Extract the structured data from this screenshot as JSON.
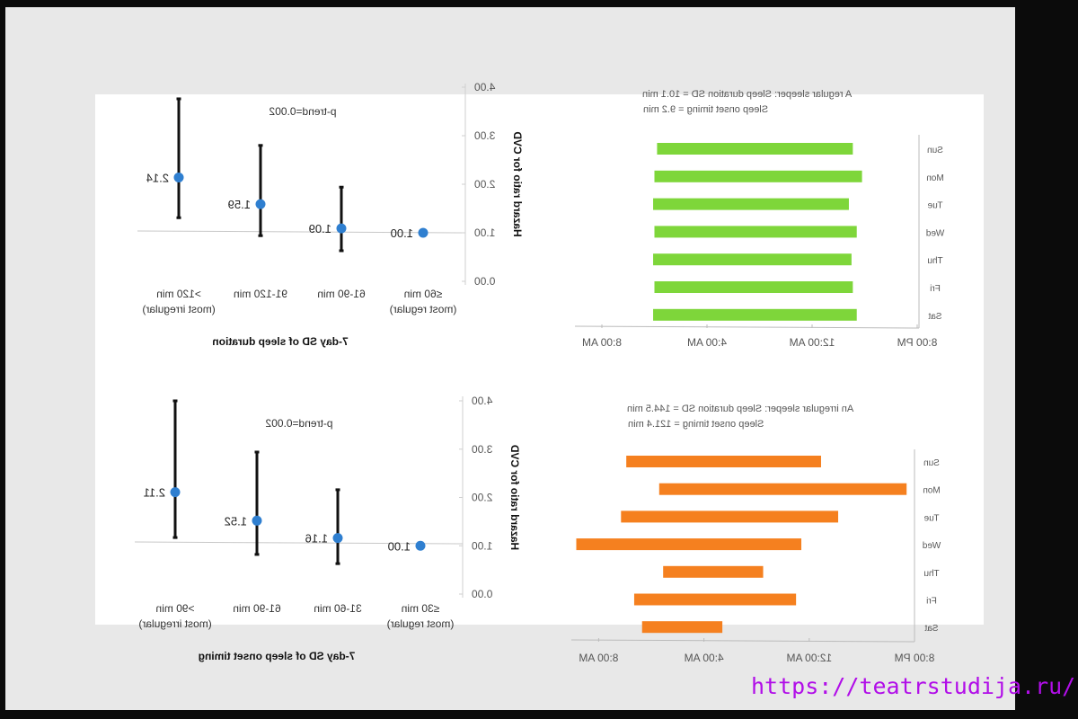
{
  "watermark": "https://teatrstudija.ru/",
  "chart_data": [
    {
      "type": "scatter",
      "subtype": "forest-plot",
      "title": "7-day SD of sleep duration",
      "annotation": "p-trend=0.002",
      "ylabel": "Hazard ratio for CVD",
      "ylim": [
        0,
        4
      ],
      "y_ticks": [
        {
          "value": 0,
          "label": "0.00"
        },
        {
          "value": 1,
          "label": "1.00"
        },
        {
          "value": 2,
          "label": "2.00"
        },
        {
          "value": 3,
          "label": "3.00"
        },
        {
          "value": 4,
          "label": "4.00"
        }
      ],
      "categories": [
        {
          "line1": "≤60 min",
          "line2": "(most regular)",
          "hr": 1.0,
          "hr_label": "1.00",
          "ci": null
        },
        {
          "line1": "61-90 min",
          "line2": "",
          "hr": 1.09,
          "hr_label": "1.09",
          "ci": [
            0.63,
            1.94
          ]
        },
        {
          "line1": "91-120 min",
          "line2": "",
          "hr": 1.59,
          "hr_label": "1.59",
          "ci": [
            0.94,
            2.8
          ]
        },
        {
          "line1": ">120 min",
          "line2": "(most irregular)",
          "hr": 2.14,
          "hr_label": "2.14",
          "ci": [
            1.31,
            3.76
          ]
        }
      ]
    },
    {
      "type": "scatter",
      "subtype": "forest-plot",
      "title": "7-day SD of sleep onset timing",
      "annotation": "p-trend=0.002",
      "ylabel": "Hazard ratio for CVD",
      "ylim": [
        0,
        4
      ],
      "y_ticks": [
        {
          "value": 0,
          "label": "0.00"
        },
        {
          "value": 1,
          "label": "1.00"
        },
        {
          "value": 2,
          "label": "2.00"
        },
        {
          "value": 3,
          "label": "3.00"
        },
        {
          "value": 4,
          "label": "4.00"
        }
      ],
      "categories": [
        {
          "line1": "≤30 min",
          "line2": "(most regular)",
          "hr": 1.0,
          "hr_label": "1.00",
          "ci": null
        },
        {
          "line1": "31-60 min",
          "line2": "",
          "hr": 1.16,
          "hr_label": "1.16",
          "ci": [
            0.63,
            2.16
          ]
        },
        {
          "line1": "61-90 min",
          "line2": "",
          "hr": 1.52,
          "hr_label": "1.52",
          "ci": [
            0.82,
            2.94
          ]
        },
        {
          "line1": ">90 min",
          "line2": "(most irregular)",
          "hr": 2.11,
          "hr_label": "2.11",
          "ci": [
            1.17,
            4.0
          ]
        }
      ]
    },
    {
      "type": "bar",
      "subtype": "floating-horizontal",
      "title_line1": "A regular sleeper: Sleep duration SD = 10.1 min",
      "title_line2": "Sleep onset timing = 9.2 min",
      "color": "#7ed63a",
      "x_unit": "hours after 8:00 PM",
      "xlim": [
        0,
        12
      ],
      "x_ticks": [
        {
          "value": 0,
          "label": "8:00 PM"
        },
        {
          "value": 4,
          "label": "12:00 AM"
        },
        {
          "value": 8,
          "label": "4:00 AM"
        },
        {
          "value": 12,
          "label": "8:00 AM"
        }
      ],
      "days": [
        {
          "day": "Sun",
          "sleep_onset": 2.45,
          "wake": 9.9
        },
        {
          "day": "Mon",
          "sleep_onset": 2.1,
          "wake": 10.0
        },
        {
          "day": "Tue",
          "sleep_onset": 2.6,
          "wake": 10.05
        },
        {
          "day": "Wed",
          "sleep_onset": 2.3,
          "wake": 10.0
        },
        {
          "day": "Thu",
          "sleep_onset": 2.5,
          "wake": 10.05
        },
        {
          "day": "Fri",
          "sleep_onset": 2.45,
          "wake": 10.0
        },
        {
          "day": "Sat",
          "sleep_onset": 2.3,
          "wake": 10.05
        }
      ]
    },
    {
      "type": "bar",
      "subtype": "floating-horizontal",
      "title_line1": "An irregular sleeper: Sleep duration SD = 144.5 min",
      "title_line2": "Sleep onset timing = 121.4 min",
      "color": "#f5801f",
      "x_unit": "hours after 8:00 PM",
      "xlim": [
        0,
        12
      ],
      "x_ticks": [
        {
          "value": 0,
          "label": "8:00 PM"
        },
        {
          "value": 4,
          "label": "12:00 AM"
        },
        {
          "value": 8,
          "label": "4:00 AM"
        },
        {
          "value": 12,
          "label": "8:00 AM"
        }
      ],
      "days": [
        {
          "day": "Sun",
          "sleep_onset": 3.55,
          "wake": 10.95
        },
        {
          "day": "Mon",
          "sleep_onset": 0.3,
          "wake": 9.7
        },
        {
          "day": "Tue",
          "sleep_onset": 2.9,
          "wake": 11.15
        },
        {
          "day": "Wed",
          "sleep_onset": 4.3,
          "wake": 12.85
        },
        {
          "day": "Thu",
          "sleep_onset": 5.75,
          "wake": 9.55
        },
        {
          "day": "Fri",
          "sleep_onset": 4.5,
          "wake": 10.65
        },
        {
          "day": "Sat",
          "sleep_onset": 7.3,
          "wake": 10.35
        }
      ]
    }
  ],
  "colors": {
    "point": "#2f7fd0",
    "whisker": "#111111",
    "axis": "#c8c8c8"
  }
}
